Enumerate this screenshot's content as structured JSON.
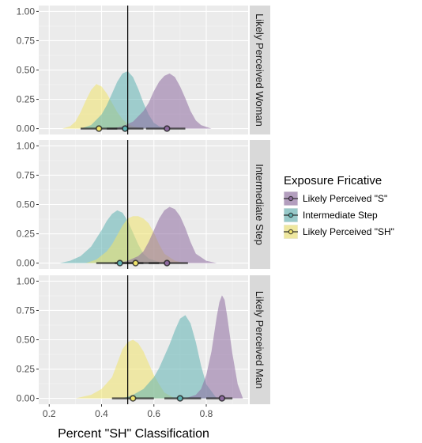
{
  "chart_data": {
    "type": "area",
    "xlabel": "Percent \"SH\" Classification",
    "ylabel": "",
    "xlim": [
      0.16,
      0.96
    ],
    "ylim": [
      -0.05,
      1.05
    ],
    "x_ticks": [
      0.2,
      0.4,
      0.6,
      0.8
    ],
    "x_tick_labels": [
      "0.2",
      "0.4",
      "0.6",
      "0.8"
    ],
    "y_ticks": [
      0.0,
      0.25,
      0.5,
      0.75,
      1.0
    ],
    "y_tick_labels": [
      "0.00",
      "0.25",
      "0.50",
      "0.75",
      "1.00"
    ],
    "reference_line_x": 0.5,
    "grid": true,
    "legend": {
      "title": "Exposure Fricative",
      "position": "right",
      "entries": [
        {
          "label": "Likely Perceived \"S\"",
          "color": "#8e6ba0"
        },
        {
          "label": "Intermediate Step",
          "color": "#5fb3b3"
        },
        {
          "label": "Likely Perceived \"SH\"",
          "color": "#f0e46c"
        }
      ]
    },
    "panels": [
      {
        "strip": "Likely Perceived Woman",
        "series": [
          {
            "name": "Likely Perceived \"SH\"",
            "x": [
              0.25,
              0.28,
              0.3,
              0.32,
              0.34,
              0.36,
              0.38,
              0.4,
              0.42,
              0.44,
              0.46,
              0.48,
              0.5,
              0.52,
              0.54,
              0.56,
              0.58,
              0.6
            ],
            "y": [
              0.0,
              0.02,
              0.06,
              0.14,
              0.24,
              0.33,
              0.38,
              0.36,
              0.3,
              0.22,
              0.14,
              0.08,
              0.04,
              0.02,
              0.01,
              0.005,
              0.002,
              0.0
            ],
            "point": 0.39,
            "interval": [
              0.32,
              0.46
            ]
          },
          {
            "name": "Intermediate Step",
            "x": [
              0.32,
              0.36,
              0.4,
              0.42,
              0.44,
              0.46,
              0.48,
              0.5,
              0.52,
              0.54,
              0.56,
              0.58,
              0.6,
              0.62,
              0.66
            ],
            "y": [
              0.0,
              0.03,
              0.12,
              0.2,
              0.3,
              0.4,
              0.47,
              0.49,
              0.44,
              0.34,
              0.22,
              0.12,
              0.05,
              0.02,
              0.0
            ],
            "point": 0.49,
            "interval": [
              0.42,
              0.56
            ]
          },
          {
            "name": "Likely Perceived \"S\"",
            "x": [
              0.44,
              0.48,
              0.52,
              0.56,
              0.58,
              0.6,
              0.62,
              0.64,
              0.66,
              0.68,
              0.7,
              0.72,
              0.74,
              0.76,
              0.78,
              0.82
            ],
            "y": [
              0.0,
              0.02,
              0.06,
              0.15,
              0.22,
              0.32,
              0.4,
              0.45,
              0.47,
              0.44,
              0.36,
              0.26,
              0.15,
              0.07,
              0.03,
              0.0
            ],
            "point": 0.65,
            "interval": [
              0.57,
              0.72
            ]
          }
        ]
      },
      {
        "strip": "Intermediate Step",
        "series": [
          {
            "name": "Intermediate Step",
            "x": [
              0.24,
              0.28,
              0.32,
              0.36,
              0.4,
              0.42,
              0.44,
              0.46,
              0.48,
              0.5,
              0.52,
              0.54,
              0.56,
              0.58,
              0.62,
              0.66
            ],
            "y": [
              0.0,
              0.02,
              0.06,
              0.14,
              0.28,
              0.36,
              0.42,
              0.45,
              0.43,
              0.36,
              0.26,
              0.16,
              0.08,
              0.04,
              0.01,
              0.0
            ],
            "point": 0.47,
            "interval": [
              0.38,
              0.56
            ]
          },
          {
            "name": "Likely Perceived \"SH\"",
            "x": [
              0.34,
              0.38,
              0.42,
              0.44,
              0.46,
              0.48,
              0.5,
              0.52,
              0.54,
              0.56,
              0.58,
              0.6,
              0.62,
              0.64,
              0.68,
              0.72
            ],
            "y": [
              0.0,
              0.03,
              0.1,
              0.16,
              0.24,
              0.32,
              0.38,
              0.4,
              0.4,
              0.38,
              0.34,
              0.26,
              0.16,
              0.08,
              0.02,
              0.0
            ],
            "point": 0.53,
            "interval": [
              0.45,
              0.62
            ]
          },
          {
            "name": "Likely Perceived \"S\"",
            "x": [
              0.46,
              0.5,
              0.54,
              0.56,
              0.58,
              0.6,
              0.62,
              0.64,
              0.66,
              0.68,
              0.7,
              0.72,
              0.74,
              0.76,
              0.8,
              0.84
            ],
            "y": [
              0.0,
              0.02,
              0.06,
              0.1,
              0.18,
              0.28,
              0.38,
              0.45,
              0.48,
              0.46,
              0.4,
              0.3,
              0.18,
              0.08,
              0.02,
              0.0
            ],
            "point": 0.65,
            "interval": [
              0.58,
              0.73
            ]
          }
        ]
      },
      {
        "strip": "Likely Perceived Man",
        "series": [
          {
            "name": "Likely Perceived \"SH\"",
            "x": [
              0.3,
              0.36,
              0.4,
              0.44,
              0.46,
              0.48,
              0.5,
              0.52,
              0.54,
              0.56,
              0.58,
              0.6,
              0.62,
              0.64,
              0.68
            ],
            "y": [
              0.0,
              0.03,
              0.08,
              0.18,
              0.3,
              0.42,
              0.48,
              0.5,
              0.47,
              0.4,
              0.3,
              0.2,
              0.12,
              0.05,
              0.0
            ],
            "point": 0.52,
            "interval": [
              0.44,
              0.6
            ]
          },
          {
            "name": "Intermediate Step",
            "x": [
              0.48,
              0.52,
              0.56,
              0.6,
              0.62,
              0.64,
              0.66,
              0.68,
              0.7,
              0.72,
              0.74,
              0.76,
              0.78,
              0.8,
              0.84
            ],
            "y": [
              0.0,
              0.03,
              0.08,
              0.18,
              0.26,
              0.36,
              0.46,
              0.58,
              0.68,
              0.71,
              0.64,
              0.48,
              0.28,
              0.12,
              0.0
            ],
            "point": 0.7,
            "interval": [
              0.64,
              0.78
            ]
          },
          {
            "name": "Likely Perceived \"S\"",
            "x": [
              0.72,
              0.76,
              0.78,
              0.8,
              0.82,
              0.84,
              0.85,
              0.86,
              0.87,
              0.88,
              0.9,
              0.92,
              0.94
            ],
            "y": [
              0.0,
              0.03,
              0.08,
              0.2,
              0.4,
              0.7,
              0.82,
              0.88,
              0.84,
              0.7,
              0.38,
              0.12,
              0.0
            ],
            "point": 0.86,
            "interval": [
              0.8,
              0.9
            ]
          }
        ]
      }
    ]
  }
}
